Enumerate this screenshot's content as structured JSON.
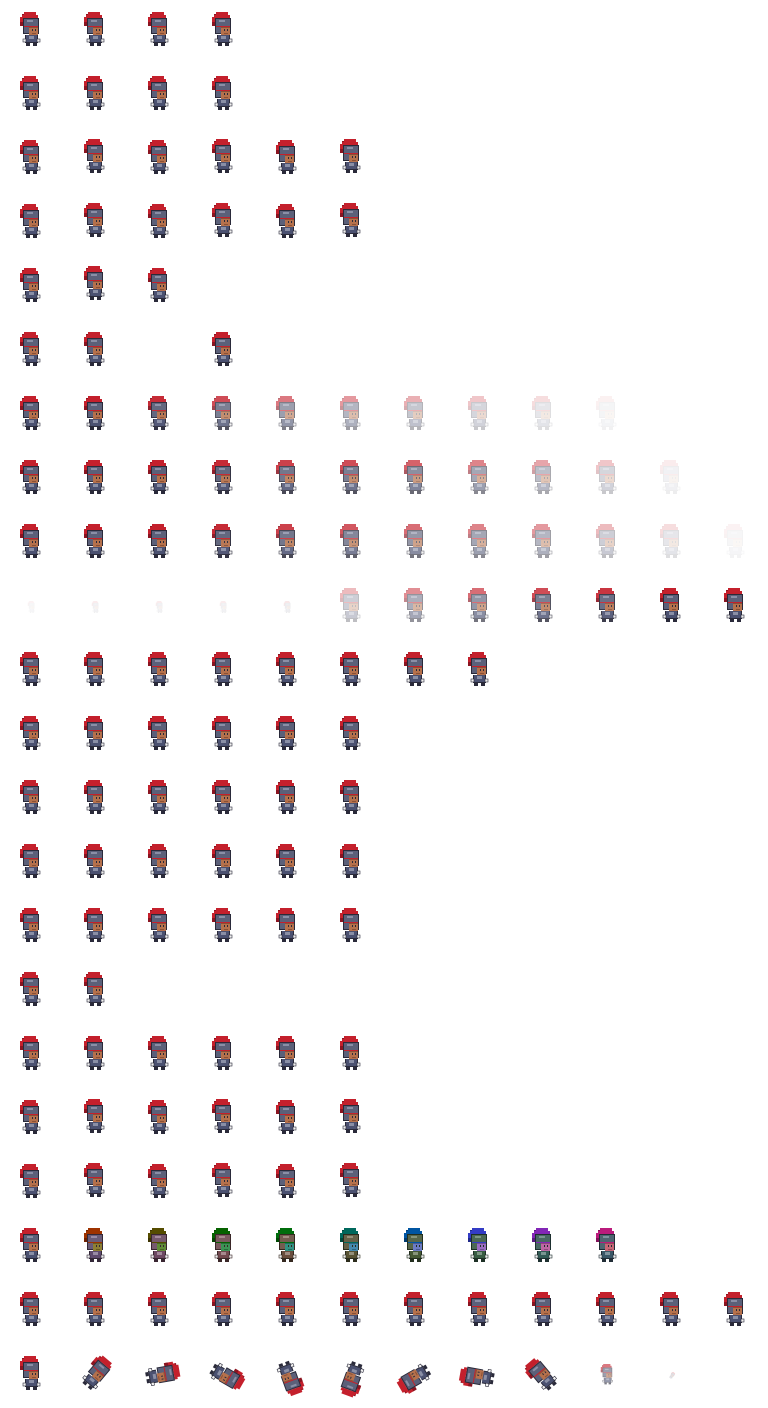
{
  "sprite_sheet": {
    "columns": 12,
    "rows_count": 22,
    "colors": {
      "crest": "#c4202c",
      "crest_dark": "#8a1420",
      "helmet": "#5b6079",
      "helmet_light": "#8a8fa6",
      "outline": "#2a2a3a",
      "skin": "#b5714c",
      "skin_dark": "#8a5034",
      "body": "#4b5171",
      "hands": "#f2f2f2"
    },
    "rows": [
      {
        "effect": "idle",
        "frames": [
          1,
          1,
          1,
          1
        ]
      },
      {
        "effect": "idle",
        "frames": [
          1,
          1,
          1,
          1
        ]
      },
      {
        "effect": "walk",
        "frames": [
          1,
          1,
          1,
          1,
          1,
          1
        ]
      },
      {
        "effect": "walk",
        "frames": [
          1,
          1,
          1,
          1,
          1,
          1
        ]
      },
      {
        "effect": "jump",
        "frames": [
          1,
          1,
          1
        ]
      },
      {
        "effect": "hit",
        "frames": [
          1,
          1,
          0,
          1
        ]
      },
      {
        "effect": "dissolve",
        "frames": [
          1,
          1,
          0.95,
          0.8,
          0.6,
          0.45,
          0.35,
          0.25,
          0.15,
          0.06
        ]
      },
      {
        "effect": "slice",
        "frames": [
          1,
          1,
          1,
          0.95,
          0.85,
          0.8,
          0.7,
          0.55,
          0.4,
          0.25,
          0.08
        ]
      },
      {
        "effect": "shatter",
        "frames": [
          1,
          1,
          1,
          0.95,
          0.85,
          0.75,
          0.65,
          0.55,
          0.45,
          0.3,
          0.15,
          0.05
        ]
      },
      {
        "effect": "appear",
        "frames": [
          0.05,
          0.08,
          0.08,
          0.08,
          0.1,
          0.3,
          0.5,
          0.65,
          0.8,
          0.9,
          1,
          1
        ]
      },
      {
        "effect": "attack",
        "frames": [
          1,
          1,
          1,
          1,
          1,
          1,
          1,
          1
        ]
      },
      {
        "effect": "attack",
        "frames": [
          1,
          1,
          1,
          1,
          1,
          1
        ]
      },
      {
        "effect": "attack",
        "frames": [
          1,
          1,
          1,
          1,
          1,
          1
        ]
      },
      {
        "effect": "attack",
        "frames": [
          1,
          1,
          1,
          1,
          1,
          1
        ]
      },
      {
        "effect": "attack",
        "frames": [
          1,
          1,
          1,
          1,
          1,
          1
        ]
      },
      {
        "effect": "idle",
        "frames": [
          1,
          1
        ]
      },
      {
        "effect": "throw",
        "frames": [
          1,
          1,
          1,
          1,
          1,
          1
        ]
      },
      {
        "effect": "walk",
        "frames": [
          1,
          1,
          1,
          1,
          1,
          1
        ]
      },
      {
        "effect": "walk",
        "frames": [
          1,
          1,
          1,
          1,
          1,
          1
        ]
      },
      {
        "effect": "glitch",
        "frames": [
          1,
          1,
          1,
          1,
          1,
          1,
          1,
          1,
          1,
          1
        ]
      },
      {
        "effect": "turn",
        "frames": [
          1,
          1,
          1,
          1,
          1,
          1,
          1,
          1,
          1,
          1,
          1,
          1
        ]
      },
      {
        "effect": "swirl",
        "frames": [
          1,
          1,
          1,
          1,
          1,
          1,
          1,
          1,
          1,
          0.6,
          0.2
        ]
      }
    ]
  }
}
